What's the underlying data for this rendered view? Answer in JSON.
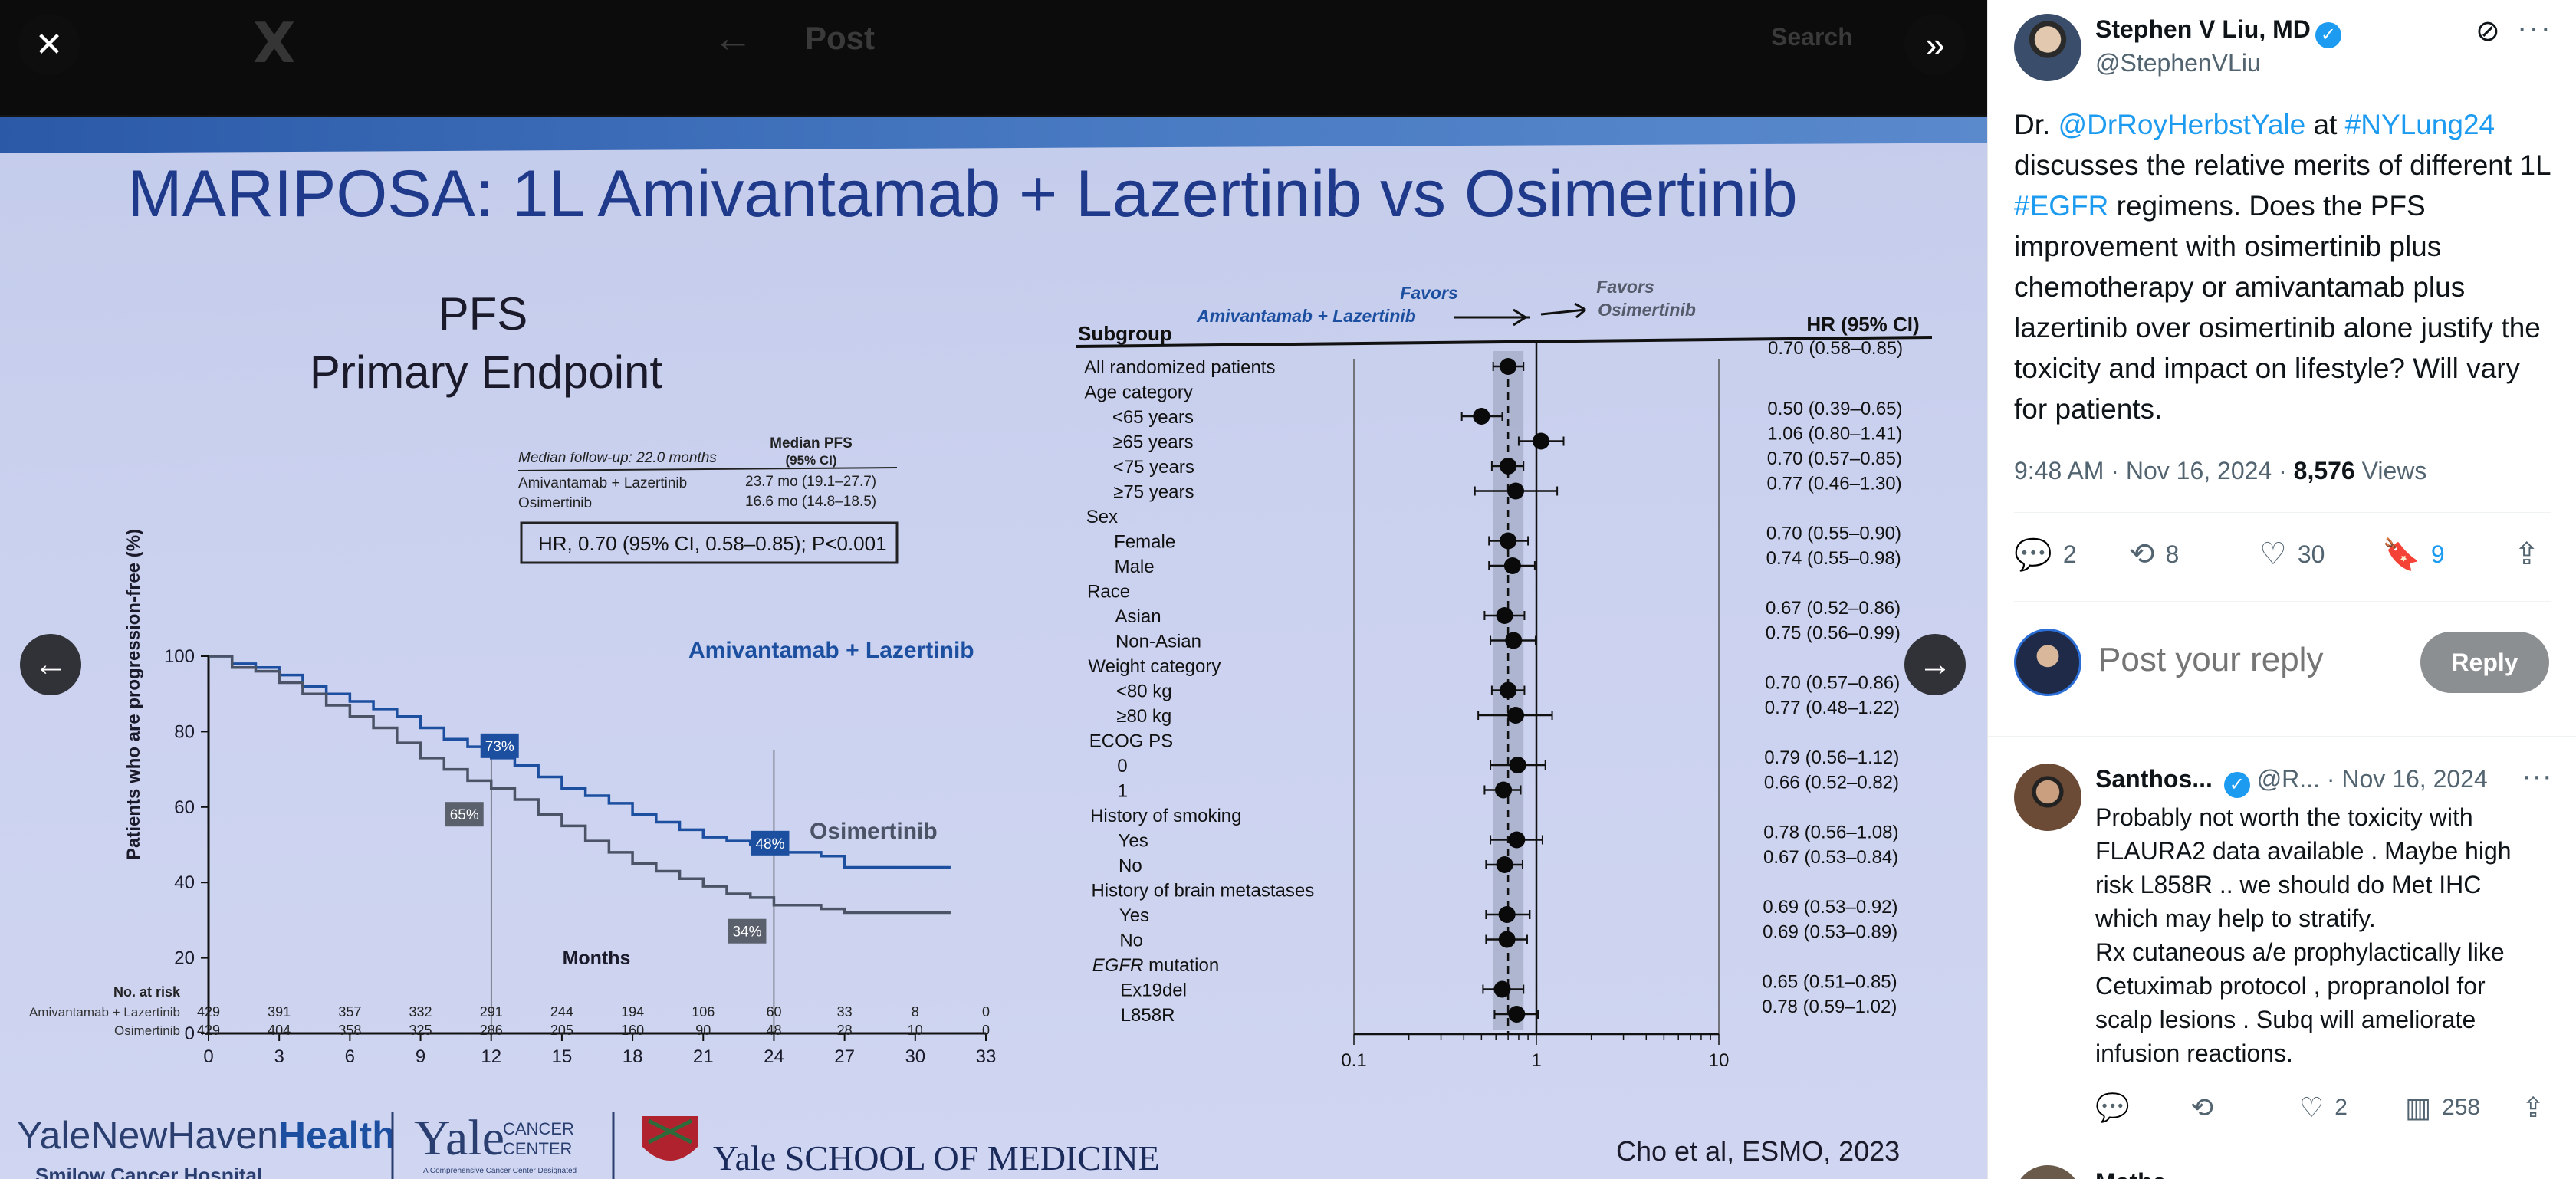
{
  "viewer": {
    "ghost": {
      "logo": "X",
      "back": "←",
      "title": "Post",
      "search": "Search"
    },
    "controls": {
      "close_icon": "✕",
      "expand_icon": "»",
      "prev_icon": "←",
      "next_icon": "→"
    },
    "slide": {
      "title": "MARIPOSA: 1L Amivantamab + Lazertinib vs Osimertinib",
      "pfs_title": "PFS",
      "pfs_subtitle": "Primary Endpoint",
      "median_followup": "Median follow-up: 22.0 months",
      "median_pfs_header_1": "Median PFS",
      "median_pfs_header_2": "(95% CI)",
      "arm1_name": "Amivantamab + Lazertinib",
      "arm1_pfs": "23.7 mo (19.1–27.7)",
      "arm2_name": "Osimertinib",
      "arm2_pfs": "16.6 mo (14.8–18.5)",
      "hr_text": "HR, 0.70 (95% CI, 0.58–0.85); P<0.001",
      "ylabel": "Patients who are progression-free (%)",
      "xlabel": "Months",
      "curve_label_1": "Amivantamab + Lazertinib",
      "curve_label_2": "Osimertinib",
      "badge_73": "73%",
      "badge_65": "65%",
      "badge_48": "48%",
      "badge_34": "34%",
      "at_risk_title": "No. at risk",
      "at_risk_rows": [
        {
          "name": "Amivantamab + Lazertinib",
          "values": [
            "429",
            "391",
            "357",
            "332",
            "291",
            "244",
            "194",
            "106",
            "60",
            "33",
            "8",
            "0"
          ]
        },
        {
          "name": "Osimertinib",
          "values": [
            "429",
            "404",
            "358",
            "325",
            "286",
            "205",
            "160",
            "90",
            "48",
            "28",
            "10",
            "0"
          ]
        }
      ],
      "forest_header_subgroup": "Subgroup",
      "forest_favors_left_1": "Favors",
      "forest_favors_left_2": "Amivantamab + Lazertinib",
      "forest_favors_right_1": "Favors",
      "forest_favors_right_2": "Osimertinib",
      "forest_header_hr": "HR (95% CI)",
      "forest_axis_ticks": [
        "0.1",
        "1",
        "10"
      ],
      "logos": {
        "ynh_a": "YaleNewHaven",
        "ynh_b": "Health",
        "ynh_sub": "Smilow Cancer Hospital",
        "ycc_a": "Yale",
        "ycc_b": "CANCER",
        "ycc_c": "CENTER",
        "ycc_sub": "A Comprehensive Cancer Center Designated",
        "ysm": "Yale SCHOOL OF MEDICINE"
      },
      "citation": "Cho et al, ESMO, 2023"
    }
  },
  "chart_data": [
    {
      "type": "line",
      "title": "PFS",
      "subtitle": "Primary Endpoint",
      "xlabel": "Months",
      "ylabel": "Patients who are progression-free (%)",
      "xlim": [
        0,
        33
      ],
      "ylim": [
        0,
        100
      ],
      "x_ticks": [
        0,
        3,
        6,
        9,
        12,
        15,
        18,
        21,
        24,
        27,
        30,
        33
      ],
      "y_ticks": [
        0,
        20,
        40,
        60,
        80,
        100
      ],
      "series": [
        {
          "name": "Amivantamab + Lazertinib",
          "x": [
            0,
            1,
            2,
            3,
            4,
            5,
            6,
            7,
            8,
            9,
            10,
            11,
            12,
            13,
            14,
            15,
            16,
            17,
            18,
            19,
            20,
            21,
            22,
            23,
            24,
            25,
            26,
            27,
            28,
            29,
            30,
            31.5
          ],
          "y": [
            100,
            98,
            97,
            95,
            92,
            90,
            88,
            86,
            84,
            81,
            78,
            76,
            73,
            71,
            68,
            65,
            63,
            61,
            58,
            56,
            54,
            52,
            51,
            50,
            48,
            48,
            47,
            44,
            44,
            44,
            44,
            44
          ]
        },
        {
          "name": "Osimertinib",
          "x": [
            0,
            1,
            2,
            3,
            4,
            5,
            6,
            7,
            8,
            9,
            10,
            11,
            12,
            13,
            14,
            15,
            16,
            17,
            18,
            19,
            20,
            21,
            22,
            23,
            24,
            25,
            26,
            27,
            28,
            29,
            30,
            31.5
          ],
          "y": [
            100,
            97,
            96,
            93,
            90,
            87,
            84,
            81,
            77,
            73,
            70,
            67,
            65,
            62,
            58,
            55,
            51,
            48,
            45,
            43,
            41,
            39,
            37,
            36,
            34,
            34,
            33,
            32,
            32,
            32,
            32,
            32
          ]
        }
      ],
      "annotations": [
        {
          "x": 12,
          "value": 73,
          "label": "73%"
        },
        {
          "x": 12,
          "value": 65,
          "label": "65%"
        },
        {
          "x": 24,
          "value": 48,
          "label": "48%"
        },
        {
          "x": 24,
          "value": 34,
          "label": "34%"
        }
      ]
    },
    {
      "type": "scatter",
      "subtype": "forest",
      "x_scale": "log",
      "xlim": [
        0.1,
        10
      ],
      "x_ticks": [
        0.1,
        1,
        10
      ],
      "rows": [
        {
          "label": "All randomized patients",
          "indent": 0,
          "hr": 0.7,
          "lo": 0.58,
          "hi": 0.85,
          "text": "0.70 (0.58–0.85)"
        },
        {
          "label": "Age category",
          "indent": 0,
          "header": true
        },
        {
          "label": "<65 years",
          "indent": 1,
          "hr": 0.5,
          "lo": 0.39,
          "hi": 0.65,
          "text": "0.50 (0.39–0.65)"
        },
        {
          "label": "≥65 years",
          "indent": 1,
          "hr": 1.06,
          "lo": 0.8,
          "hi": 1.41,
          "text": "1.06 (0.80–1.41)"
        },
        {
          "label": "<75 years",
          "indent": 1,
          "hr": 0.7,
          "lo": 0.57,
          "hi": 0.85,
          "text": "0.70 (0.57–0.85)"
        },
        {
          "label": "≥75 years",
          "indent": 1,
          "hr": 0.77,
          "lo": 0.46,
          "hi": 1.3,
          "text": "0.77 (0.46–1.30)"
        },
        {
          "label": "Sex",
          "indent": 0,
          "header": true
        },
        {
          "label": "Female",
          "indent": 1,
          "hr": 0.7,
          "lo": 0.55,
          "hi": 0.9,
          "text": "0.70 (0.55–0.90)"
        },
        {
          "label": "Male",
          "indent": 1,
          "hr": 0.74,
          "lo": 0.55,
          "hi": 0.98,
          "text": "0.74 (0.55–0.98)"
        },
        {
          "label": "Race",
          "indent": 0,
          "header": true
        },
        {
          "label": "Asian",
          "indent": 1,
          "hr": 0.67,
          "lo": 0.52,
          "hi": 0.86,
          "text": "0.67 (0.52–0.86)"
        },
        {
          "label": "Non-Asian",
          "indent": 1,
          "hr": 0.75,
          "lo": 0.56,
          "hi": 0.99,
          "text": "0.75 (0.56–0.99)"
        },
        {
          "label": "Weight category",
          "indent": 0,
          "header": true
        },
        {
          "label": "<80 kg",
          "indent": 1,
          "hr": 0.7,
          "lo": 0.57,
          "hi": 0.86,
          "text": "0.70 (0.57–0.86)"
        },
        {
          "label": "≥80 kg",
          "indent": 1,
          "hr": 0.77,
          "lo": 0.48,
          "hi": 1.22,
          "text": "0.77 (0.48–1.22)"
        },
        {
          "label": "ECOG PS",
          "indent": 0,
          "header": true
        },
        {
          "label": "0",
          "indent": 1,
          "hr": 0.79,
          "lo": 0.56,
          "hi": 1.12,
          "text": "0.79 (0.56–1.12)"
        },
        {
          "label": "1",
          "indent": 1,
          "hr": 0.66,
          "lo": 0.52,
          "hi": 0.82,
          "text": "0.66 (0.52–0.82)"
        },
        {
          "label": "History of smoking",
          "indent": 0,
          "header": true
        },
        {
          "label": "Yes",
          "indent": 1,
          "hr": 0.78,
          "lo": 0.56,
          "hi": 1.08,
          "text": "0.78 (0.56–1.08)"
        },
        {
          "label": "No",
          "indent": 1,
          "hr": 0.67,
          "lo": 0.53,
          "hi": 0.84,
          "text": "0.67 (0.53–0.84)"
        },
        {
          "label": "History of brain metastases",
          "indent": 0,
          "header": true
        },
        {
          "label": "Yes",
          "indent": 1,
          "hr": 0.69,
          "lo": 0.53,
          "hi": 0.92,
          "text": "0.69 (0.53–0.92)"
        },
        {
          "label": "No",
          "indent": 1,
          "hr": 0.69,
          "lo": 0.53,
          "hi": 0.89,
          "text": "0.69 (0.53–0.89)"
        },
        {
          "label": "EGFR mutation",
          "indent": 0,
          "header": true,
          "italic_prefix": "EGFR"
        },
        {
          "label": "Ex19del",
          "indent": 1,
          "hr": 0.65,
          "lo": 0.51,
          "hi": 0.85,
          "text": "0.65 (0.51–0.85)"
        },
        {
          "label": "L858R",
          "indent": 1,
          "hr": 0.78,
          "lo": 0.59,
          "hi": 1.02,
          "text": "0.78 (0.59–1.02)"
        }
      ]
    }
  ],
  "panel": {
    "author": {
      "name": "Stephen V Liu, MD",
      "handle": "@StephenVLiu"
    },
    "icons": {
      "grok": "⊘",
      "more": "···",
      "verified": "✓"
    },
    "post": {
      "t1": "Dr. ",
      "mention": "@DrRoyHerbstYale",
      "t2": " at ",
      "tag1": "#NYLung24",
      "t3": " discusses the relative merits of different 1L ",
      "tag2": "#EGFR",
      "t4": " regimens. Does the PFS improvement with osimertinib plus chemotherapy or amivantamab plus lazertinib over osimertinib alone justify the toxicity and impact on lifestyle? Will vary for patients."
    },
    "meta": {
      "time": "9:48 AM · Nov 16, 2024 · ",
      "views": "8,576",
      "views_label": " Views"
    },
    "actions": {
      "reply": {
        "icon": "💬",
        "count": "2"
      },
      "repost": {
        "icon": "⟲",
        "count": "8"
      },
      "like": {
        "icon": "♡",
        "count": "30"
      },
      "bookmark": {
        "icon": "🔖",
        "count": "9"
      },
      "share": {
        "icon": "⇪"
      }
    },
    "composer": {
      "placeholder": "Post your reply",
      "button": "Reply"
    },
    "reply1": {
      "name": "Santhos...",
      "handle": "@R...",
      "date": "· Nov 16, 2024",
      "text_lines": [
        "Probably not worth the toxicity with",
        "FLAURA2 data available . Maybe high",
        "risk L858R .. we should do Met IHC",
        "which may help to stratify.",
        "Rx cutaneous a/e prophylactically like",
        "Cetuximab protocol , propranolol for",
        "scalp lesions . Subq will ameliorate",
        "infusion reactions."
      ],
      "actions": {
        "reply_icon": "💬",
        "repost_icon": "⟲",
        "like_icon": "♡",
        "likes": "2",
        "views_icon": "▥",
        "views": "258",
        "share_icon": "⇪"
      }
    },
    "reply2": {
      "name": "Mathe..."
    }
  }
}
